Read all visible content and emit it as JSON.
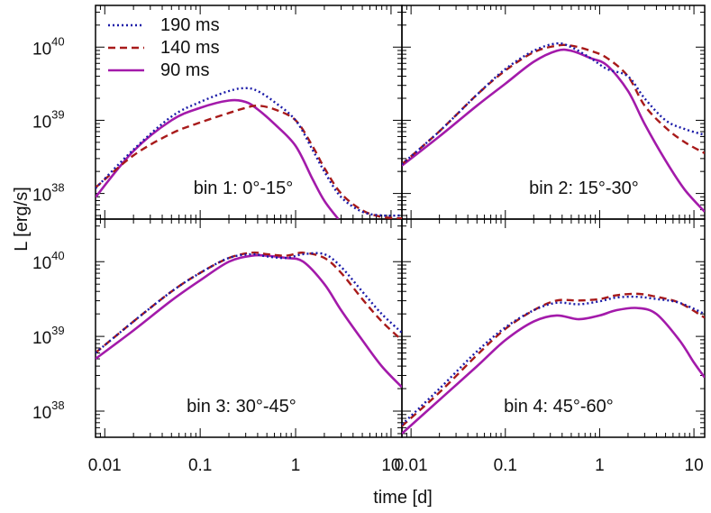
{
  "chart_data": {
    "type": "line",
    "ylabel": "L [erg/s]",
    "xlabel": "time [d]",
    "x_scale": "log",
    "y_scale": "log",
    "xlim": [
      0.008,
      13
    ],
    "ylim_exp": [
      37.65,
      40.57
    ],
    "x_tick_labels": [
      "0.01",
      "0.1",
      "1",
      "10"
    ],
    "x_tick_values": [
      0.01,
      0.1,
      1,
      10
    ],
    "y_tick_base": "10",
    "y_tick_exponents": [
      "38",
      "39",
      "40"
    ],
    "legend": {
      "placement": "top-left",
      "entries": [
        "190 ms",
        "140 ms",
        "90 ms"
      ]
    },
    "series_styles": [
      {
        "name": "190 ms",
        "color": "#1a1aa8",
        "dash": "dotted"
      },
      {
        "name": "140 ms",
        "color": "#a81a1a",
        "dash": "dashed"
      },
      {
        "name": "90 ms",
        "color": "#a31aaa",
        "dash": "solid"
      }
    ],
    "panels": [
      {
        "label": "bin 1: 0°-15°",
        "series": [
          {
            "name": "190 ms",
            "points": [
              [
                0.008,
                38.07
              ],
              [
                0.02,
                38.6
              ],
              [
                0.05,
                39.05
              ],
              [
                0.1,
                39.25
              ],
              [
                0.2,
                39.4
              ],
              [
                0.3,
                39.44
              ],
              [
                0.4,
                39.4
              ],
              [
                0.6,
                39.25
              ],
              [
                1,
                39.0
              ],
              [
                1.5,
                38.6
              ],
              [
                2,
                38.3
              ],
              [
                3,
                37.95
              ],
              [
                5,
                37.75
              ],
              [
                8,
                37.7
              ],
              [
                13,
                37.7
              ]
            ]
          },
          {
            "name": "140 ms",
            "points": [
              [
                0.008,
                38.08
              ],
              [
                0.02,
                38.52
              ],
              [
                0.05,
                38.82
              ],
              [
                0.1,
                38.97
              ],
              [
                0.2,
                39.1
              ],
              [
                0.3,
                39.17
              ],
              [
                0.4,
                39.2
              ],
              [
                0.6,
                39.15
              ],
              [
                1,
                39.0
              ],
              [
                1.5,
                38.65
              ],
              [
                2,
                38.35
              ],
              [
                3,
                38.0
              ],
              [
                5,
                37.77
              ],
              [
                8,
                37.68
              ],
              [
                13,
                37.66
              ]
            ]
          },
          {
            "name": "90 ms",
            "points": [
              [
                0.008,
                37.95
              ],
              [
                0.02,
                38.58
              ],
              [
                0.05,
                39.0
              ],
              [
                0.1,
                39.17
              ],
              [
                0.2,
                39.27
              ],
              [
                0.3,
                39.25
              ],
              [
                0.4,
                39.15
              ],
              [
                0.6,
                38.95
              ],
              [
                1,
                38.65
              ],
              [
                1.5,
                38.2
              ],
              [
                2,
                37.9
              ],
              [
                2.8,
                37.65
              ]
            ]
          }
        ]
      },
      {
        "label": "bin 2: 15°-30°",
        "series": [
          {
            "name": "190 ms",
            "points": [
              [
                0.008,
                38.4
              ],
              [
                0.02,
                38.85
              ],
              [
                0.05,
                39.35
              ],
              [
                0.1,
                39.7
              ],
              [
                0.2,
                39.95
              ],
              [
                0.35,
                40.05
              ],
              [
                0.5,
                40.0
              ],
              [
                0.8,
                39.85
              ],
              [
                1.2,
                39.7
              ],
              [
                2,
                39.6
              ],
              [
                3,
                39.3
              ],
              [
                5,
                39.0
              ],
              [
                8,
                38.88
              ],
              [
                13,
                38.8
              ]
            ]
          },
          {
            "name": "140 ms",
            "points": [
              [
                0.008,
                38.4
              ],
              [
                0.02,
                38.85
              ],
              [
                0.05,
                39.35
              ],
              [
                0.1,
                39.68
              ],
              [
                0.2,
                39.93
              ],
              [
                0.35,
                40.02
              ],
              [
                0.5,
                40.02
              ],
              [
                0.8,
                39.95
              ],
              [
                1.2,
                39.85
              ],
              [
                2,
                39.6
              ],
              [
                3,
                39.2
              ],
              [
                5,
                38.9
              ],
              [
                8,
                38.7
              ],
              [
                13,
                38.55
              ]
            ]
          },
          {
            "name": "90 ms",
            "points": [
              [
                0.008,
                38.38
              ],
              [
                0.02,
                38.78
              ],
              [
                0.05,
                39.2
              ],
              [
                0.1,
                39.5
              ],
              [
                0.2,
                39.8
              ],
              [
                0.35,
                39.95
              ],
              [
                0.5,
                39.95
              ],
              [
                0.8,
                39.85
              ],
              [
                1.2,
                39.75
              ],
              [
                2,
                39.4
              ],
              [
                3,
                38.95
              ],
              [
                5,
                38.45
              ],
              [
                8,
                38.05
              ],
              [
                13,
                37.75
              ]
            ]
          }
        ]
      },
      {
        "label": "bin 3: 30°-45°",
        "series": [
          {
            "name": "190 ms",
            "points": [
              [
                0.008,
                38.78
              ],
              [
                0.02,
                39.2
              ],
              [
                0.05,
                39.6
              ],
              [
                0.1,
                39.85
              ],
              [
                0.2,
                40.05
              ],
              [
                0.35,
                40.1
              ],
              [
                0.5,
                40.07
              ],
              [
                0.8,
                40.05
              ],
              [
                1.2,
                40.1
              ],
              [
                2,
                40.1
              ],
              [
                3,
                39.93
              ],
              [
                5,
                39.6
              ],
              [
                8,
                39.3
              ],
              [
                13,
                39.05
              ]
            ]
          },
          {
            "name": "140 ms",
            "points": [
              [
                0.008,
                38.78
              ],
              [
                0.02,
                39.2
              ],
              [
                0.05,
                39.6
              ],
              [
                0.1,
                39.85
              ],
              [
                0.2,
                40.05
              ],
              [
                0.35,
                40.12
              ],
              [
                0.5,
                40.1
              ],
              [
                0.8,
                40.08
              ],
              [
                1.2,
                40.12
              ],
              [
                2,
                40.05
              ],
              [
                3,
                39.85
              ],
              [
                5,
                39.5
              ],
              [
                8,
                39.2
              ],
              [
                13,
                38.95
              ]
            ]
          },
          {
            "name": "90 ms",
            "points": [
              [
                0.008,
                38.7
              ],
              [
                0.02,
                39.08
              ],
              [
                0.05,
                39.48
              ],
              [
                0.1,
                39.75
              ],
              [
                0.2,
                40.0
              ],
              [
                0.35,
                40.08
              ],
              [
                0.5,
                40.08
              ],
              [
                0.8,
                40.05
              ],
              [
                1.2,
                40.0
              ],
              [
                2,
                39.7
              ],
              [
                3,
                39.35
              ],
              [
                5,
                38.95
              ],
              [
                8,
                38.6
              ],
              [
                13,
                38.32
              ]
            ]
          }
        ]
      },
      {
        "label": "bin 4: 45°-60°",
        "series": [
          {
            "name": "190 ms",
            "points": [
              [
                0.008,
                37.82
              ],
              [
                0.02,
                38.3
              ],
              [
                0.05,
                38.8
              ],
              [
                0.1,
                39.12
              ],
              [
                0.2,
                39.35
              ],
              [
                0.35,
                39.45
              ],
              [
                0.6,
                39.43
              ],
              [
                1,
                39.47
              ],
              [
                1.5,
                39.52
              ],
              [
                2.5,
                39.53
              ],
              [
                4,
                39.5
              ],
              [
                7,
                39.45
              ],
              [
                13,
                39.3
              ]
            ]
          },
          {
            "name": "140 ms",
            "points": [
              [
                0.008,
                37.8
              ],
              [
                0.02,
                38.25
              ],
              [
                0.05,
                38.75
              ],
              [
                0.1,
                39.1
              ],
              [
                0.2,
                39.35
              ],
              [
                0.35,
                39.48
              ],
              [
                0.6,
                39.48
              ],
              [
                1,
                39.5
              ],
              [
                1.5,
                39.55
              ],
              [
                2.5,
                39.57
              ],
              [
                4,
                39.53
              ],
              [
                7,
                39.45
              ],
              [
                13,
                39.25
              ]
            ]
          },
          {
            "name": "90 ms",
            "points": [
              [
                0.008,
                37.7
              ],
              [
                0.02,
                38.15
              ],
              [
                0.05,
                38.6
              ],
              [
                0.1,
                38.95
              ],
              [
                0.2,
                39.2
              ],
              [
                0.35,
                39.28
              ],
              [
                0.6,
                39.23
              ],
              [
                1,
                39.28
              ],
              [
                1.5,
                39.35
              ],
              [
                2.5,
                39.38
              ],
              [
                4,
                39.3
              ],
              [
                7,
                38.95
              ],
              [
                10,
                38.65
              ],
              [
                13,
                38.45
              ]
            ]
          }
        ]
      }
    ]
  }
}
